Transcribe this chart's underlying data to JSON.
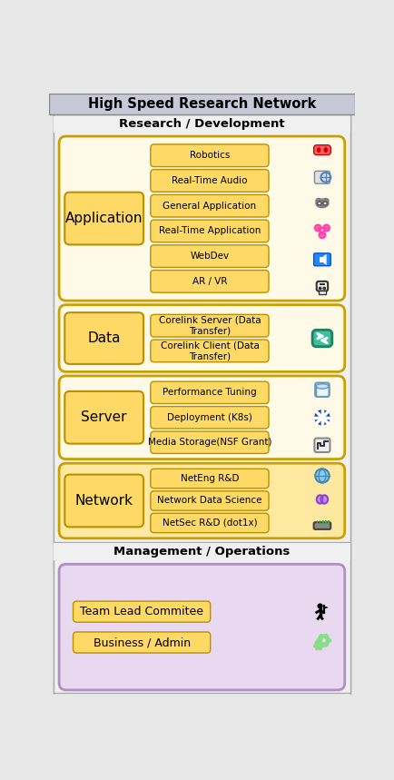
{
  "title": "High Speed Research Network",
  "title_bg": "#c8c8d8",
  "outer_bg": "#e8e8e8",
  "section_rd_label": "Research / Development",
  "section_mo_label": "Management / Operations",
  "section_rd_bg": "#f0f0f0",
  "section_mo_bg": "#f0f0f0",
  "layers": [
    {
      "name": "Application",
      "layer_bg": "#fffae8",
      "layer_border": "#c8a000",
      "label_bg": "#ffd966",
      "label_border": "#b89000",
      "items": [
        "AR / VR",
        "WebDev",
        "Real-Time Application",
        "General Application",
        "Real-Time Audio",
        "Robotics"
      ]
    },
    {
      "name": "Data",
      "layer_bg": "#fffae8",
      "layer_border": "#c8a000",
      "label_bg": "#ffd966",
      "label_border": "#b89000",
      "items": [
        "Corelink Client (Data\nTransfer)",
        "Corelink Server (Data\nTransfer)"
      ]
    },
    {
      "name": "Server",
      "layer_bg": "#fffae8",
      "layer_border": "#c8a000",
      "label_bg": "#ffd966",
      "label_border": "#b89000",
      "items": [
        "Media Storage(NSF Grant)",
        "Deployment (K8s)",
        "Performance Tuning"
      ]
    },
    {
      "name": "Network",
      "layer_bg": "#ffe8a0",
      "layer_border": "#c8a000",
      "label_bg": "#ffd966",
      "label_border": "#b89000",
      "items": [
        "NetSec R&D (dot1x)",
        "Network Data Science",
        "NetEng R&D"
      ]
    }
  ],
  "mgmt": {
    "layer_bg": "#e8d8f0",
    "layer_border": "#b090c0",
    "label_bg": "#ffd966",
    "label_border": "#b89000",
    "items": [
      "Business / Admin",
      "Team Lead Commitee"
    ]
  }
}
